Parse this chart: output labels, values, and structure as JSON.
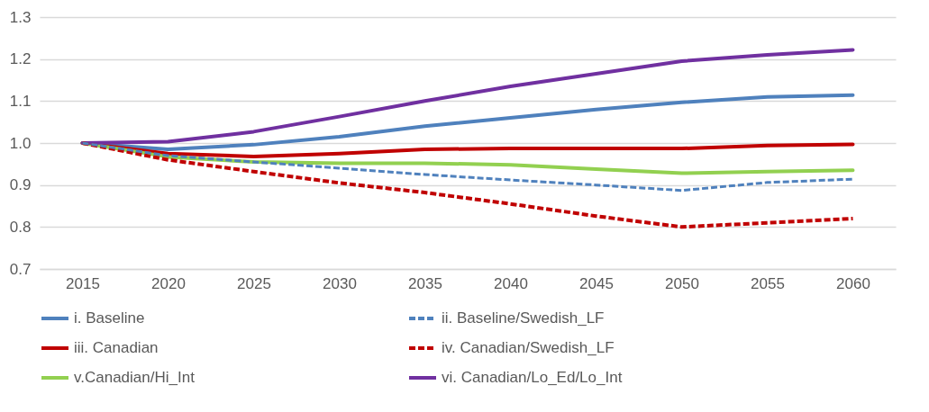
{
  "chart_data": {
    "type": "line",
    "categories": [
      "2015",
      "2020",
      "2025",
      "2030",
      "2035",
      "2040",
      "2045",
      "2050",
      "2055",
      "2060"
    ],
    "ylim": [
      0.7,
      1.3
    ],
    "yticks": [
      {
        "value": 0.7,
        "label": "0.7"
      },
      {
        "value": 0.8,
        "label": "0.8"
      },
      {
        "value": 0.9,
        "label": "0.9"
      },
      {
        "value": 1.0,
        "label": "1.0"
      },
      {
        "value": 1.1,
        "label": "1.1"
      },
      {
        "value": 1.2,
        "label": "1.2"
      },
      {
        "value": 1.3,
        "label": "1.3"
      }
    ],
    "grid": "y",
    "legend": "bottom",
    "series": [
      {
        "name": "i. Baseline",
        "color": "#4f81bd",
        "line_style": "solid",
        "values": [
          1.0,
          0.985,
          0.996,
          1.015,
          1.04,
          1.06,
          1.08,
          1.097,
          1.11,
          1.114
        ]
      },
      {
        "name": "ii. Baseline/Swedish_LF",
        "color": "#4f81bd",
        "line_style": "dashed",
        "values": [
          1.0,
          0.97,
          0.955,
          0.94,
          0.925,
          0.912,
          0.9,
          0.887,
          0.906,
          0.914
        ]
      },
      {
        "name": "iii. Canadian",
        "color": "#c00000",
        "line_style": "solid",
        "values": [
          1.0,
          0.975,
          0.968,
          0.975,
          0.985,
          0.987,
          0.987,
          0.987,
          0.994,
          0.997
        ]
      },
      {
        "name": "iv. Canadian/Swedish_LF",
        "color": "#c00000",
        "line_style": "dashed",
        "values": [
          1.0,
          0.96,
          0.932,
          0.905,
          0.882,
          0.855,
          0.826,
          0.8,
          0.81,
          0.82
        ]
      },
      {
        "name": "v.Canadian/Hi_Int",
        "color": "#92d050",
        "line_style": "solid",
        "values": [
          1.0,
          0.967,
          0.955,
          0.952,
          0.952,
          0.948,
          0.938,
          0.928,
          0.932,
          0.935
        ]
      },
      {
        "name": "vi. Canadian/Lo_Ed/Lo_Int",
        "color": "#7030a0",
        "line_style": "solid",
        "values": [
          1.0,
          1.003,
          1.027,
          1.063,
          1.1,
          1.135,
          1.165,
          1.195,
          1.21,
          1.222
        ]
      }
    ]
  }
}
